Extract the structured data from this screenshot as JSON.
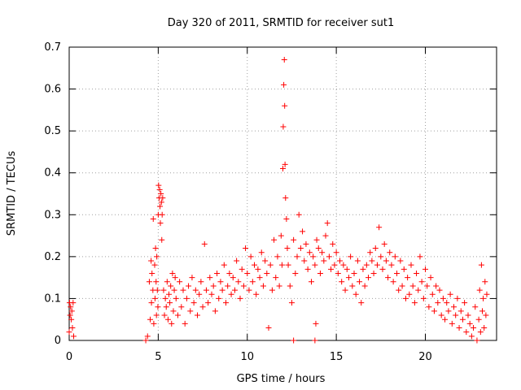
{
  "chart_data": {
    "type": "scatter",
    "title": "Day 320 of 2011, SRMTID for receiver sut1",
    "xlabel": "GPS time / hours",
    "ylabel": "SRMTID / TECUs",
    "xlim": [
      0,
      24
    ],
    "ylim": [
      0,
      0.7
    ],
    "grid": true,
    "marker": "plus",
    "xticks": [
      0,
      5,
      10,
      15,
      20
    ],
    "yticks": [
      0,
      0.1,
      0.2,
      0.3,
      0.4,
      0.5,
      0.6,
      0.7
    ],
    "xtick_labels": [
      "0",
      "5",
      "10",
      "15",
      "20"
    ],
    "ytick_labels": [
      "0",
      "0.1",
      "0.2",
      "0.3",
      "0.4",
      "0.5",
      "0.6",
      "0.7"
    ],
    "series": [
      {
        "name": "SRMTID",
        "color": "#ff0000",
        "x": [
          0.0,
          0.02,
          0.05,
          0.08,
          0.12,
          0.15,
          0.18,
          0.22,
          0.25,
          4.3,
          4.4,
          4.5,
          4.55,
          4.6,
          4.62,
          4.65,
          4.7,
          4.72,
          4.75,
          4.8,
          4.82,
          4.85,
          4.88,
          4.9,
          4.92,
          4.95,
          4.98,
          5.0,
          5.02,
          5.05,
          5.08,
          5.1,
          5.12,
          5.15,
          5.18,
          5.2,
          5.22,
          5.25,
          5.3,
          5.35,
          5.4,
          5.45,
          5.5,
          5.55,
          5.6,
          5.65,
          5.7,
          5.75,
          5.8,
          5.85,
          5.9,
          5.95,
          6.0,
          6.1,
          6.2,
          6.3,
          6.4,
          6.5,
          6.6,
          6.7,
          6.8,
          6.9,
          7.0,
          7.1,
          7.2,
          7.3,
          7.4,
          7.5,
          7.6,
          7.7,
          7.8,
          7.9,
          8.0,
          8.1,
          8.2,
          8.3,
          8.4,
          8.5,
          8.6,
          8.7,
          8.8,
          8.9,
          9.0,
          9.1,
          9.2,
          9.3,
          9.4,
          9.5,
          9.6,
          9.7,
          9.8,
          9.9,
          10.0,
          10.1,
          10.2,
          10.3,
          10.4,
          10.5,
          10.6,
          10.7,
          10.8,
          10.9,
          11.0,
          11.1,
          11.2,
          11.3,
          11.4,
          11.5,
          11.6,
          11.7,
          11.8,
          11.9,
          11.95,
          12.0,
          12.02,
          12.05,
          12.08,
          12.1,
          12.12,
          12.15,
          12.2,
          12.25,
          12.3,
          12.4,
          12.5,
          12.6,
          12.7,
          12.8,
          12.9,
          13.0,
          13.1,
          13.2,
          13.3,
          13.4,
          13.5,
          13.6,
          13.7,
          13.8,
          13.9,
          14.0,
          14.1,
          14.2,
          14.3,
          14.4,
          14.5,
          14.6,
          14.7,
          14.8,
          14.9,
          15.0,
          15.1,
          15.2,
          15.3,
          15.4,
          15.5,
          15.6,
          15.7,
          15.8,
          15.9,
          16.0,
          16.1,
          16.2,
          16.3,
          16.4,
          16.5,
          16.6,
          16.7,
          16.8,
          16.9,
          17.0,
          17.1,
          17.2,
          17.3,
          17.4,
          17.5,
          17.6,
          17.7,
          17.8,
          17.9,
          18.0,
          18.1,
          18.2,
          18.3,
          18.4,
          18.5,
          18.6,
          18.7,
          18.8,
          18.9,
          19.0,
          19.1,
          19.2,
          19.3,
          19.4,
          19.5,
          19.6,
          19.7,
          19.8,
          19.9,
          20.0,
          20.1,
          20.2,
          20.3,
          20.4,
          20.5,
          20.6,
          20.7,
          20.8,
          20.9,
          21.0,
          21.1,
          21.2,
          21.3,
          21.4,
          21.5,
          21.6,
          21.7,
          21.8,
          21.9,
          22.0,
          22.1,
          22.2,
          22.3,
          22.4,
          22.5,
          22.6,
          22.7,
          22.8,
          22.9,
          23.0,
          23.05,
          23.1,
          23.15,
          23.2,
          23.25,
          23.3,
          23.35,
          23.4,
          23.45,
          12.6,
          13.8,
          13.85
        ],
        "y": [
          0.02,
          0.09,
          0.06,
          0.08,
          0.05,
          0.07,
          0.03,
          0.09,
          0.01,
          0.0,
          0.01,
          0.14,
          0.05,
          0.19,
          0.09,
          0.16,
          0.12,
          0.29,
          0.04,
          0.18,
          0.1,
          0.22,
          0.14,
          0.06,
          0.2,
          0.12,
          0.08,
          0.3,
          0.37,
          0.34,
          0.36,
          0.32,
          0.28,
          0.35,
          0.33,
          0.24,
          0.3,
          0.34,
          0.12,
          0.06,
          0.1,
          0.08,
          0.14,
          0.05,
          0.11,
          0.09,
          0.13,
          0.04,
          0.16,
          0.07,
          0.12,
          0.15,
          0.1,
          0.06,
          0.14,
          0.08,
          0.12,
          0.04,
          0.1,
          0.13,
          0.07,
          0.15,
          0.09,
          0.12,
          0.06,
          0.11,
          0.14,
          0.08,
          0.23,
          0.12,
          0.09,
          0.15,
          0.11,
          0.13,
          0.07,
          0.16,
          0.1,
          0.14,
          0.12,
          0.18,
          0.09,
          0.13,
          0.16,
          0.11,
          0.15,
          0.12,
          0.19,
          0.14,
          0.1,
          0.17,
          0.13,
          0.22,
          0.16,
          0.12,
          0.2,
          0.14,
          0.18,
          0.11,
          0.17,
          0.15,
          0.21,
          0.13,
          0.19,
          0.16,
          0.03,
          0.18,
          0.12,
          0.24,
          0.15,
          0.2,
          0.13,
          0.25,
          0.18,
          0.41,
          0.51,
          0.61,
          0.67,
          0.56,
          0.42,
          0.34,
          0.29,
          0.22,
          0.18,
          0.13,
          0.09,
          0.24,
          0.16,
          0.2,
          0.3,
          0.22,
          0.26,
          0.19,
          0.23,
          0.17,
          0.21,
          0.14,
          0.2,
          0.18,
          0.24,
          0.22,
          0.16,
          0.21,
          0.19,
          0.25,
          0.28,
          0.2,
          0.17,
          0.23,
          0.18,
          0.21,
          0.16,
          0.19,
          0.14,
          0.18,
          0.12,
          0.17,
          0.15,
          0.2,
          0.13,
          0.16,
          0.11,
          0.19,
          0.14,
          0.09,
          0.17,
          0.13,
          0.18,
          0.15,
          0.21,
          0.19,
          0.16,
          0.22,
          0.18,
          0.27,
          0.2,
          0.17,
          0.23,
          0.19,
          0.15,
          0.21,
          0.18,
          0.14,
          0.2,
          0.16,
          0.12,
          0.19,
          0.13,
          0.17,
          0.1,
          0.15,
          0.11,
          0.18,
          0.13,
          0.09,
          0.16,
          0.12,
          0.2,
          0.14,
          0.1,
          0.17,
          0.13,
          0.08,
          0.15,
          0.11,
          0.07,
          0.13,
          0.09,
          0.12,
          0.06,
          0.1,
          0.05,
          0.09,
          0.07,
          0.11,
          0.04,
          0.08,
          0.06,
          0.1,
          0.03,
          0.07,
          0.05,
          0.09,
          0.02,
          0.06,
          0.04,
          0.01,
          0.03,
          0.08,
          0.0,
          0.05,
          0.12,
          0.02,
          0.18,
          0.07,
          0.1,
          0.03,
          0.14,
          0.06,
          0.11,
          0.0,
          0.0,
          0.04
        ]
      }
    ]
  }
}
